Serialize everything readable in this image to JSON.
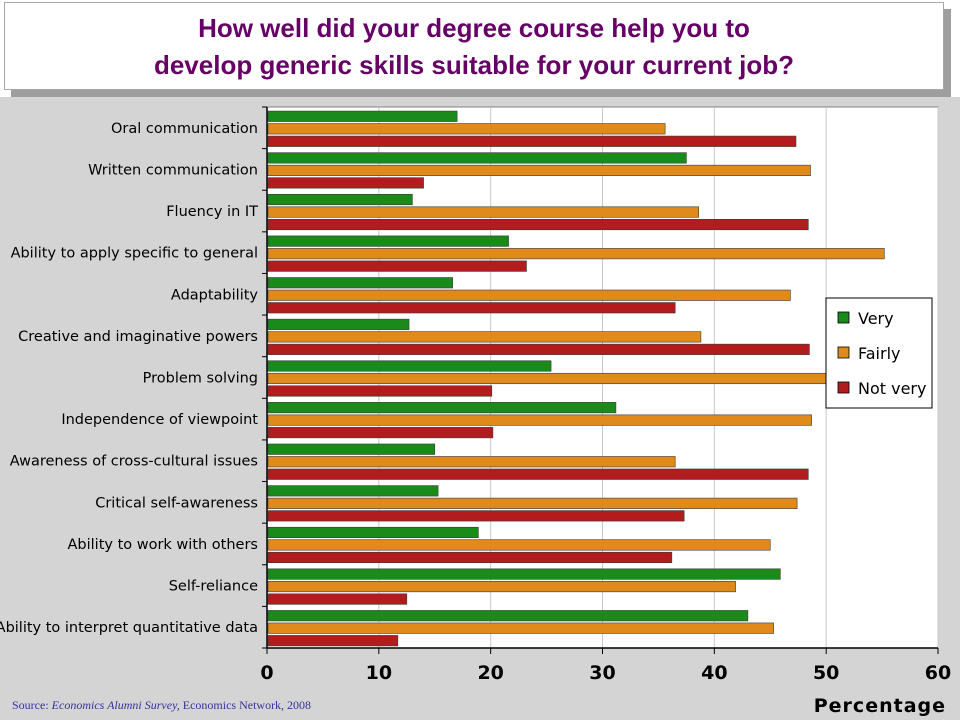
{
  "title": {
    "line1": "How well did your degree course help you to",
    "line2": "develop generic skills suitable for your current job?"
  },
  "source": {
    "prefix": "Source: ",
    "publication": "Economics Alumni Survey,",
    "rest": " Economics Network, 2008"
  },
  "colors": {
    "very": "#1a8a1a",
    "fairly": "#e08a1c",
    "not_very": "#b21c1c",
    "plot_bg": "#ffffff",
    "outer_bg": "#d4d4d4"
  },
  "chart_data": {
    "type": "bar",
    "orientation": "horizontal",
    "xlabel": "Percentage",
    "xlim": [
      0,
      60
    ],
    "xticks": [
      0,
      10,
      20,
      30,
      40,
      50,
      60
    ],
    "grid": true,
    "legend_position": "right",
    "categories": [
      "Oral communication",
      "Written communication",
      "Fluency in IT",
      "Ability to apply specific to general",
      "Adaptability",
      "Creative and imaginative powers",
      "Problem solving",
      "Independence of viewpoint",
      "Awareness of cross-cultural issues",
      "Critical self-awareness",
      "Ability to work with others",
      "Self-reliance",
      "Ability to interpret quantitative data"
    ],
    "series": [
      {
        "name": "Very",
        "values": [
          17.0,
          37.5,
          13.0,
          21.6,
          16.6,
          12.7,
          25.4,
          31.2,
          15.0,
          15.3,
          18.9,
          45.9,
          43.0
        ]
      },
      {
        "name": "Fairly",
        "values": [
          35.6,
          48.6,
          38.6,
          55.2,
          46.8,
          38.8,
          50.5,
          48.7,
          36.5,
          47.4,
          45.0,
          41.9,
          45.3
        ]
      },
      {
        "name": "Not very",
        "values": [
          47.3,
          14.0,
          48.4,
          23.2,
          36.5,
          48.5,
          20.1,
          20.2,
          48.4,
          37.3,
          36.2,
          12.5,
          11.7
        ]
      }
    ]
  }
}
